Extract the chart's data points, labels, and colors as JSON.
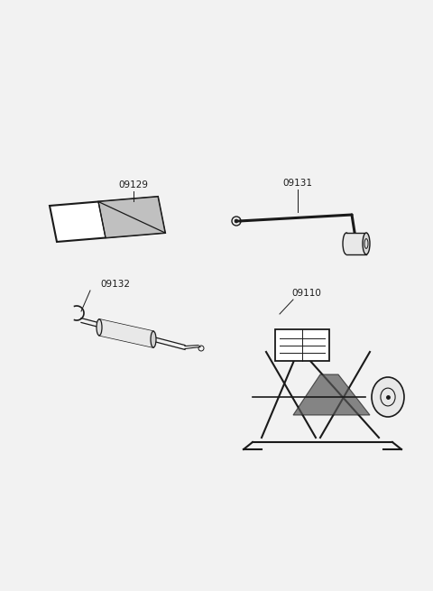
{
  "background_color": "#f2f2f2",
  "line_color": "#1a1a1a",
  "text_color": "#1a1a1a",
  "label_fontsize": 7.5
}
